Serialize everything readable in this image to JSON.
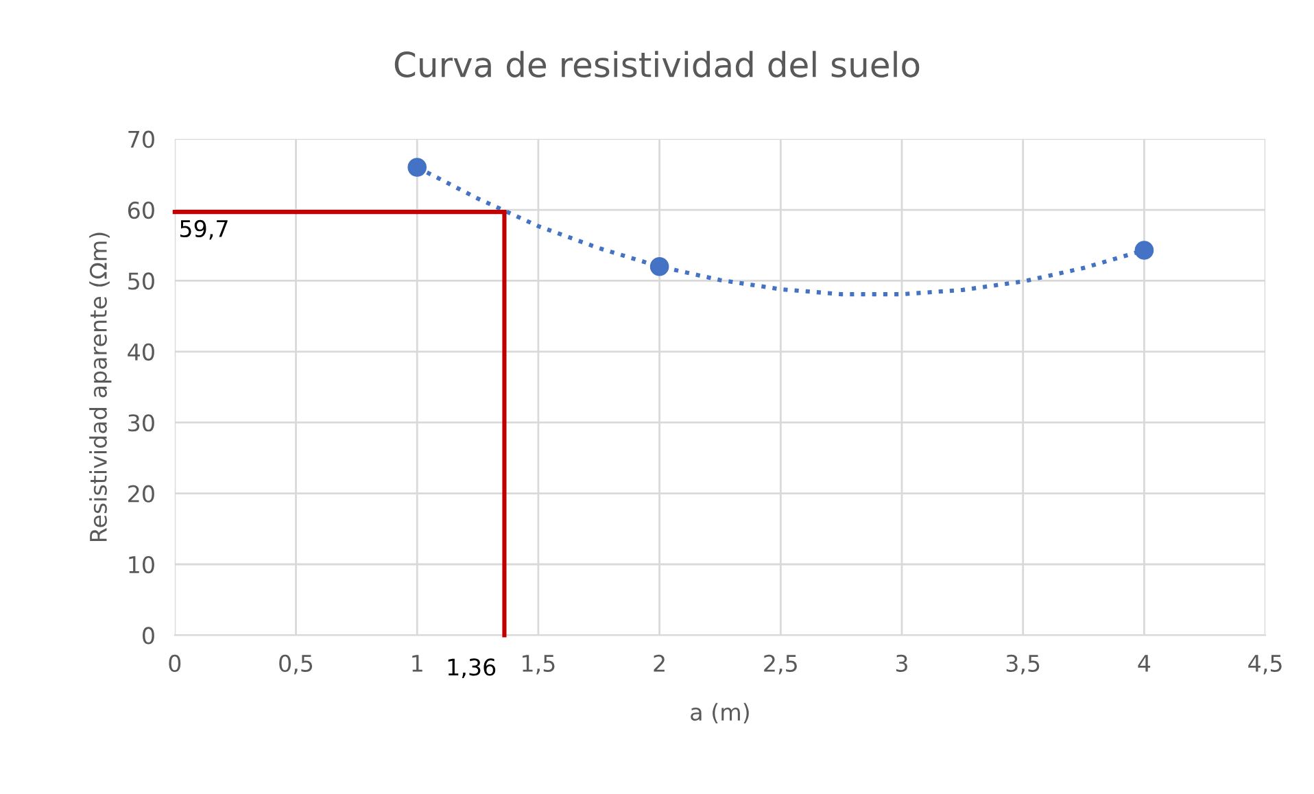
{
  "chart_data": {
    "type": "scatter",
    "title": "Curva de resistividad del suelo",
    "xlabel": "a (m)",
    "ylabel": "Resistividad aparente (Ωm)",
    "series": [
      {
        "color": "#4472c4",
        "marker": "circle",
        "x": [
          1,
          2,
          4
        ],
        "values": [
          66,
          52,
          54.3
        ]
      },
      {
        "type": "line",
        "color": "#4472c4",
        "line_style": "dotted",
        "marker": "none",
        "x": [
          1,
          1.25,
          1.5,
          1.75,
          2,
          2.25,
          2.5,
          2.75,
          3,
          3.25,
          3.5,
          3.75,
          4
        ],
        "values": [
          66,
          61.6,
          57.7,
          54.6,
          52,
          50.1,
          48.8,
          48.1,
          48.1,
          48.7,
          49.9,
          51.8,
          54.3
        ]
      }
    ],
    "xlim": [
      0,
      4.5
    ],
    "xticks": [
      0,
      {
        "value": 0.5,
        "label": "0,5"
      },
      1,
      {
        "value": 1.5,
        "label": "1,5"
      },
      2,
      {
        "value": 2.5,
        "label": "2,5"
      },
      3,
      {
        "value": 3.5,
        "label": "3,5"
      },
      4,
      {
        "value": 4.5,
        "label": "4,5"
      }
    ],
    "ylim": [
      0,
      70
    ],
    "yticks": [
      0,
      10,
      20,
      30,
      40,
      50,
      60,
      70
    ],
    "grid": true,
    "legend": false,
    "ref_lines": [
      {
        "axis": "y",
        "value": 59.7,
        "label": "59,7",
        "color": "#c00000"
      },
      {
        "axis": "x",
        "value": 1.36,
        "label": "1,36",
        "color": "#c00000"
      }
    ]
  }
}
